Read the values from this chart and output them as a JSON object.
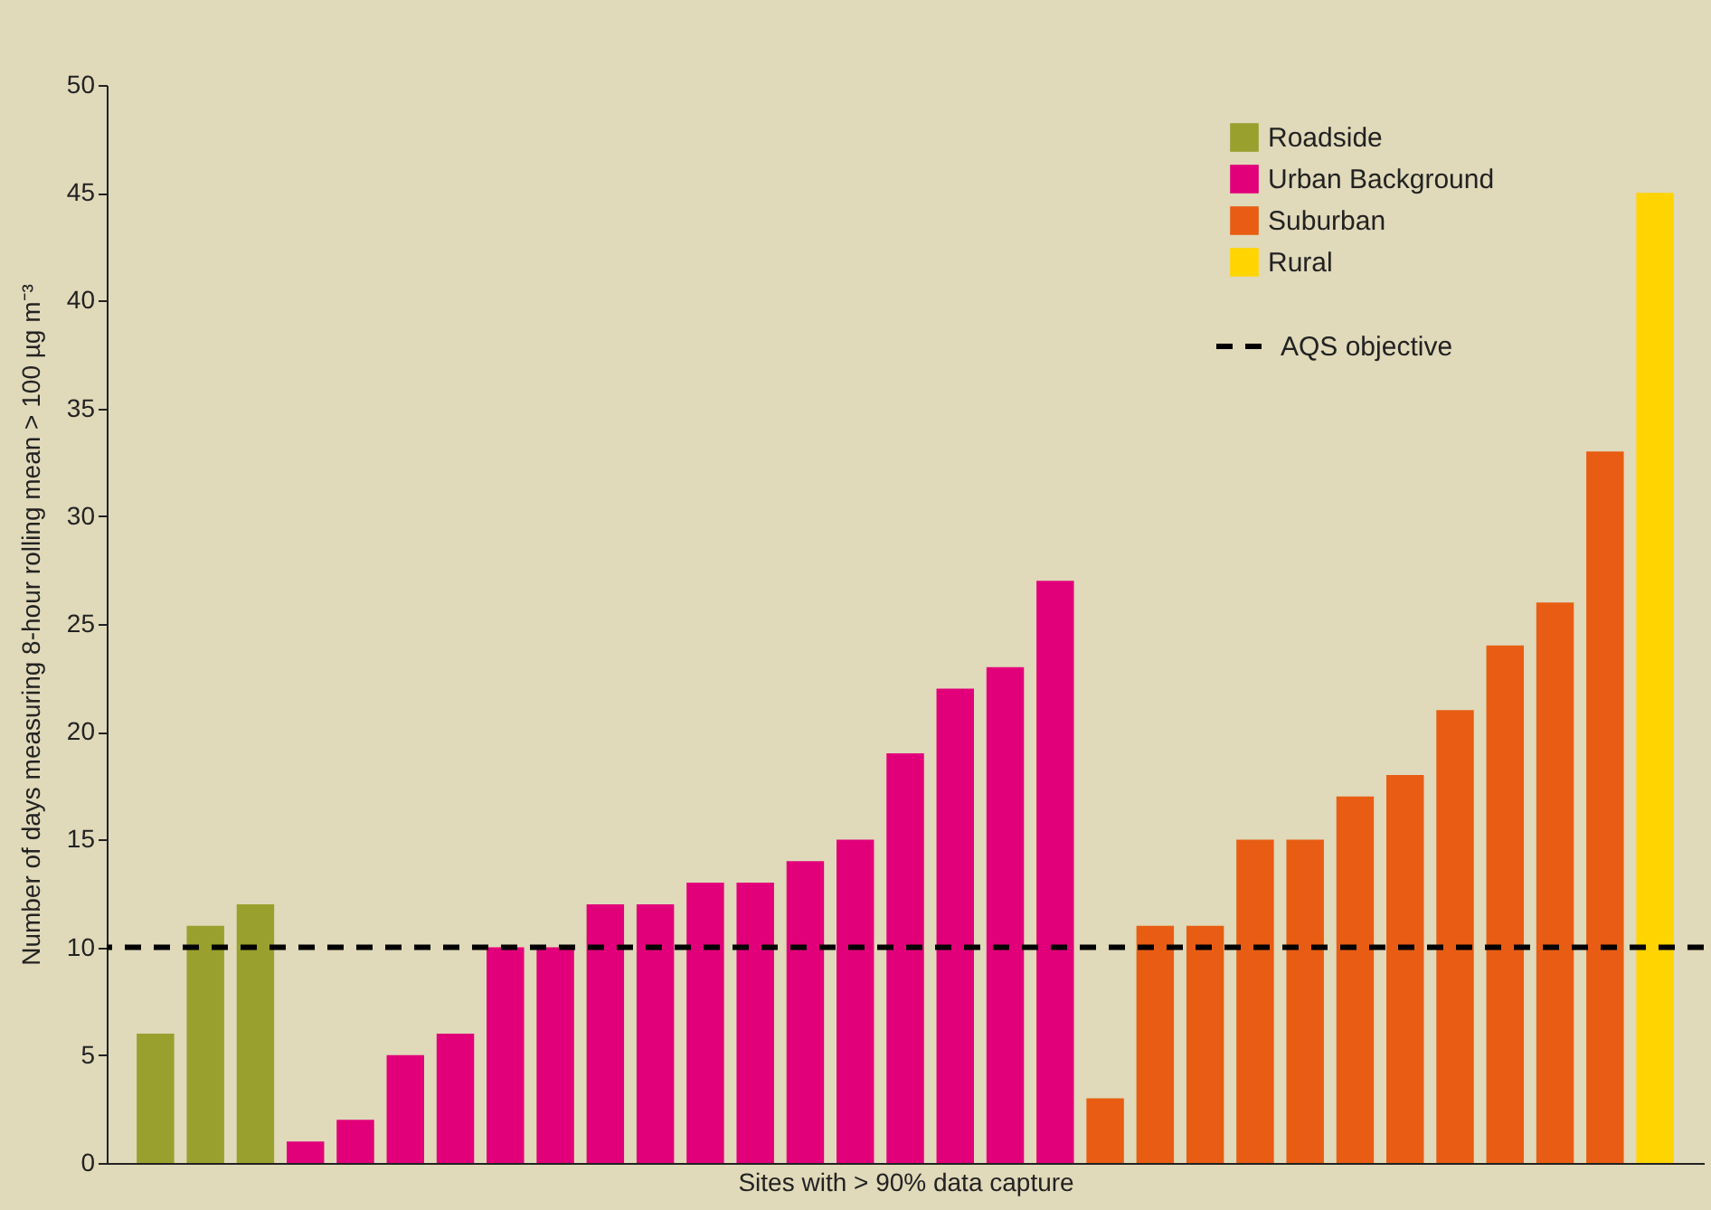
{
  "chart_data": {
    "type": "bar",
    "xlabel": "Sites with > 90% data capture",
    "ylabel": "Number of days measuring 8-hour rolling mean > 100 µg m⁻³",
    "categories": [
      null,
      null,
      null,
      null,
      null,
      null,
      null,
      null,
      null,
      null,
      null,
      null,
      null,
      null,
      null,
      null,
      null,
      null,
      null,
      null,
      null,
      null,
      null,
      null,
      null,
      null,
      null,
      null,
      null,
      null,
      null
    ],
    "series": [
      {
        "name": "Roadside",
        "color": "#9aa02e",
        "values": [
          6,
          11,
          12,
          null,
          null,
          null,
          null,
          null,
          null,
          null,
          null,
          null,
          null,
          null,
          null,
          null,
          null,
          null,
          null,
          null,
          null,
          null,
          null,
          null,
          null,
          null,
          null,
          null,
          null,
          null,
          null
        ]
      },
      {
        "name": "Urban Background",
        "color": "#e2007a",
        "values": [
          null,
          null,
          null,
          1,
          2,
          5,
          6,
          10,
          10,
          12,
          12,
          13,
          13,
          14,
          15,
          19,
          22,
          23,
          27,
          null,
          null,
          null,
          null,
          null,
          null,
          null,
          null,
          null,
          null,
          null,
          null
        ]
      },
      {
        "name": "Suburban",
        "color": "#e85d13",
        "values": [
          null,
          null,
          null,
          null,
          null,
          null,
          null,
          null,
          null,
          null,
          null,
          null,
          null,
          null,
          null,
          null,
          null,
          null,
          null,
          3,
          11,
          11,
          15,
          15,
          17,
          18,
          21,
          24,
          26,
          33,
          null
        ]
      },
      {
        "name": "Rural",
        "color": "#ffd400",
        "values": [
          null,
          null,
          null,
          null,
          null,
          null,
          null,
          null,
          null,
          null,
          null,
          null,
          null,
          null,
          null,
          null,
          null,
          null,
          null,
          null,
          null,
          null,
          null,
          null,
          null,
          null,
          null,
          null,
          null,
          null,
          45
        ]
      }
    ],
    "ylim": [
      0,
      50
    ],
    "yticks": [
      0,
      5,
      10,
      15,
      20,
      25,
      30,
      35,
      40,
      45,
      50
    ],
    "ref_lines": [
      {
        "axis": "y",
        "value": 10,
        "label": "AQS objective",
        "line_style": "dashed",
        "color": "#000000"
      }
    ],
    "legend": "top right",
    "grid": false,
    "tick_labels": "y"
  }
}
